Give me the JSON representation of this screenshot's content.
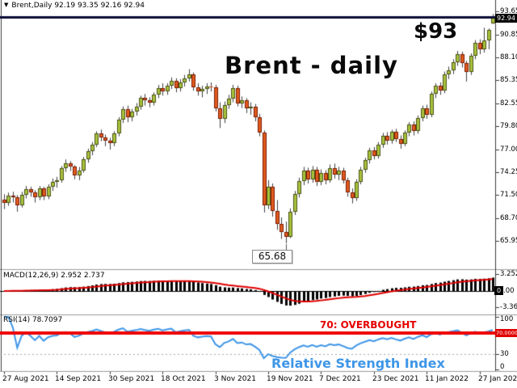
{
  "window": {
    "dropdown_icon": "▼",
    "symbol_header": "Brent,Daily  92.19 93.35 92.16 92.94"
  },
  "annotations": {
    "price_target": "$93",
    "chart_title": "Brent - daily",
    "low_label": "65.68",
    "overbought_label": "70: OVERBOUGHT",
    "rsi_caption": "Relative Strength Index"
  },
  "main_axis": {
    "labels": [
      "93.65",
      "90.85",
      "88.10",
      "85.35",
      "82.55",
      "79.80",
      "77.00",
      "74.25",
      "71.50",
      "68.70",
      "65.95"
    ],
    "current_price_tag": "92.94"
  },
  "macd_panel": {
    "label": "MACD(12,26,9) 2.952 2.737",
    "axis_labels": [
      "3.252",
      "-3.361"
    ],
    "zero_tag": "0",
    "zero_axis_label": ".00"
  },
  "rsi_panel": {
    "label": "RSI(14) 78.7097",
    "axis_labels": [
      "100",
      "30",
      "0"
    ],
    "level_tag": "70.0000"
  },
  "x_axis": {
    "dates": [
      "27 Aug 2021",
      "14 Sep 2021",
      "30 Sep 2021",
      "18 Oct 2021",
      "3 Nov 2021",
      "19 Nov 2021",
      "7 Dec 2021",
      "23 Dec 2021",
      "11 Jan 2022",
      "27 Jan 2022"
    ]
  },
  "colors": {
    "bull_fill": "#a6c23c",
    "bull_border": "#4e5216",
    "bear_fill": "#e05a1e",
    "bear_border": "#7c1d02",
    "wick": "#3f3f3f",
    "bid_line": "#0b0b38",
    "macd_histogram": "#000000",
    "macd_signal": "#e10000",
    "rsi_line": "#3e96e8",
    "overbought_line": "#ee0404",
    "dotted_level": "#a8a8a8",
    "axis_border": "#3b3b3b",
    "separator": "#9b9b9b"
  },
  "chart_data": {
    "type": "candlestick",
    "symbol": "Brent",
    "timeframe": "Daily",
    "current_bar": {
      "open": 92.19,
      "high": 93.35,
      "low": 92.16,
      "close": 92.94
    },
    "price_axis_ticks": [
      93.65,
      90.85,
      88.1,
      85.35,
      82.55,
      79.8,
      77.0,
      74.25,
      71.5,
      68.7,
      65.95
    ],
    "lowest_low": 65.68,
    "x_tick_dates": [
      "27 Aug 2021",
      "14 Sep 2021",
      "30 Sep 2021",
      "18 Oct 2021",
      "3 Nov 2021",
      "19 Nov 2021",
      "7 Dec 2021",
      "23 Dec 2021",
      "11 Jan 2022",
      "27 Jan 2022"
    ],
    "bars_per_x_tick": 12,
    "indicators": {
      "macd": {
        "fast": 12,
        "slow": 26,
        "signal": 9,
        "current_macd": 2.952,
        "current_signal": 2.737,
        "axis_max": 3.252,
        "axis_min": -3.361
      },
      "rsi": {
        "period": 14,
        "current": 78.7097,
        "overbought_level": 70,
        "dotted_level": 30,
        "axis": [
          100,
          30,
          0
        ]
      }
    },
    "candles": [
      [
        70.9,
        71.6,
        69.8,
        70.6
      ],
      [
        70.6,
        71.8,
        70.2,
        71.4
      ],
      [
        71.4,
        71.9,
        70.6,
        71.2
      ],
      [
        71.2,
        71.5,
        69.5,
        70.3
      ],
      [
        70.3,
        71.9,
        70.0,
        71.5
      ],
      [
        71.5,
        72.6,
        71.1,
        72.2
      ],
      [
        72.2,
        72.5,
        71.3,
        71.8
      ],
      [
        71.8,
        72.1,
        70.6,
        71.2
      ],
      [
        71.2,
        72.6,
        70.9,
        72.3
      ],
      [
        72.3,
        72.5,
        70.9,
        71.3
      ],
      [
        71.3,
        72.8,
        71.0,
        72.5
      ],
      [
        72.5,
        73.5,
        72.0,
        73.1
      ],
      [
        73.1,
        73.7,
        72.4,
        73.3
      ],
      [
        73.3,
        75.0,
        73.0,
        74.8
      ],
      [
        74.8,
        75.8,
        74.3,
        75.3
      ],
      [
        75.3,
        75.6,
        74.4,
        74.9
      ],
      [
        74.9,
        75.1,
        73.4,
        73.9
      ],
      [
        73.9,
        74.9,
        73.3,
        74.5
      ],
      [
        74.5,
        76.1,
        74.2,
        75.8
      ],
      [
        75.8,
        77.1,
        75.4,
        76.8
      ],
      [
        76.8,
        77.9,
        76.3,
        77.6
      ],
      [
        77.6,
        79.2,
        77.3,
        78.9
      ],
      [
        78.9,
        79.4,
        78.0,
        78.5
      ],
      [
        78.5,
        78.8,
        77.4,
        78.1
      ],
      [
        78.1,
        78.4,
        77.0,
        77.8
      ],
      [
        77.8,
        79.2,
        77.4,
        78.9
      ],
      [
        78.9,
        80.9,
        78.6,
        80.6
      ],
      [
        80.6,
        82.2,
        80.2,
        81.9
      ],
      [
        81.9,
        82.3,
        80.3,
        80.9
      ],
      [
        80.9,
        81.9,
        80.4,
        81.6
      ],
      [
        81.6,
        82.6,
        81.1,
        82.2
      ],
      [
        82.2,
        83.5,
        81.8,
        83.2
      ],
      [
        83.2,
        83.7,
        82.3,
        82.9
      ],
      [
        82.9,
        83.3,
        82.1,
        82.7
      ],
      [
        82.7,
        83.9,
        82.3,
        83.6
      ],
      [
        83.6,
        84.8,
        83.2,
        84.4
      ],
      [
        84.4,
        85.0,
        83.5,
        84.0
      ],
      [
        84.0,
        85.0,
        83.6,
        84.7
      ],
      [
        84.7,
        85.7,
        84.3,
        85.3
      ],
      [
        85.3,
        85.6,
        83.9,
        84.4
      ],
      [
        84.4,
        85.5,
        84.0,
        85.1
      ],
      [
        85.1,
        86.0,
        84.6,
        85.6
      ],
      [
        85.6,
        86.7,
        85.2,
        86.1
      ],
      [
        86.1,
        86.3,
        84.1,
        84.5
      ],
      [
        84.5,
        85.0,
        83.5,
        84.0
      ],
      [
        84.0,
        84.7,
        83.3,
        84.3
      ],
      [
        84.3,
        85.0,
        83.7,
        84.6
      ],
      [
        84.6,
        85.1,
        84.0,
        84.5
      ],
      [
        84.5,
        84.8,
        81.6,
        82.0
      ],
      [
        82.0,
        82.7,
        79.6,
        80.7
      ],
      [
        80.7,
        82.8,
        80.2,
        82.4
      ],
      [
        82.4,
        83.6,
        81.9,
        83.1
      ],
      [
        83.1,
        84.8,
        82.7,
        84.4
      ],
      [
        84.4,
        84.7,
        82.2,
        82.6
      ],
      [
        82.6,
        83.4,
        82.0,
        82.9
      ],
      [
        82.9,
        83.2,
        81.4,
        82.0
      ],
      [
        82.0,
        82.7,
        81.2,
        82.2
      ],
      [
        82.2,
        82.5,
        80.4,
        80.9
      ],
      [
        80.9,
        81.3,
        78.6,
        79.0
      ],
      [
        79.0,
        79.3,
        69.4,
        70.3
      ],
      [
        70.3,
        73.3,
        69.8,
        72.5
      ],
      [
        72.5,
        72.9,
        68.9,
        69.6
      ],
      [
        69.6,
        70.9,
        67.3,
        68.0
      ],
      [
        68.0,
        68.8,
        66.2,
        67.0
      ],
      [
        67.0,
        68.3,
        65.68,
        66.5
      ],
      [
        66.5,
        69.9,
        66.3,
        69.5
      ],
      [
        69.5,
        72.0,
        69.1,
        71.6
      ],
      [
        71.6,
        73.6,
        71.2,
        73.2
      ],
      [
        73.2,
        74.9,
        72.7,
        74.5
      ],
      [
        74.5,
        74.8,
        72.9,
        73.4
      ],
      [
        73.4,
        75.0,
        73.0,
        74.6
      ],
      [
        74.6,
        74.9,
        72.6,
        73.1
      ],
      [
        73.1,
        74.6,
        72.7,
        74.2
      ],
      [
        74.2,
        74.5,
        72.8,
        73.3
      ],
      [
        73.3,
        75.2,
        73.0,
        74.8
      ],
      [
        74.8,
        75.3,
        73.5,
        74.0
      ],
      [
        74.0,
        74.9,
        73.3,
        74.5
      ],
      [
        74.5,
        74.8,
        72.9,
        73.3
      ],
      [
        73.3,
        73.6,
        71.3,
        71.8
      ],
      [
        71.8,
        72.3,
        70.5,
        71.1
      ],
      [
        71.1,
        73.4,
        70.8,
        73.1
      ],
      [
        73.1,
        74.9,
        72.8,
        74.6
      ],
      [
        74.6,
        76.0,
        74.2,
        75.7
      ],
      [
        75.7,
        77.2,
        75.3,
        76.9
      ],
      [
        76.9,
        77.3,
        75.8,
        76.2
      ],
      [
        76.2,
        77.9,
        75.9,
        77.6
      ],
      [
        77.6,
        79.0,
        77.2,
        78.7
      ],
      [
        78.7,
        79.1,
        77.6,
        78.1
      ],
      [
        78.1,
        79.4,
        77.7,
        79.1
      ],
      [
        79.1,
        79.5,
        77.9,
        78.3
      ],
      [
        78.3,
        78.7,
        77.1,
        77.7
      ],
      [
        77.7,
        79.3,
        77.4,
        79.0
      ],
      [
        79.0,
        80.3,
        78.6,
        80.0
      ],
      [
        80.0,
        80.4,
        78.7,
        79.2
      ],
      [
        79.2,
        81.1,
        78.9,
        80.8
      ],
      [
        80.8,
        82.3,
        80.4,
        82.0
      ],
      [
        82.0,
        82.4,
        80.7,
        81.2
      ],
      [
        81.2,
        84.0,
        80.9,
        83.7
      ],
      [
        83.7,
        85.0,
        83.2,
        84.7
      ],
      [
        84.7,
        85.1,
        83.6,
        84.1
      ],
      [
        84.1,
        86.4,
        83.8,
        86.1
      ],
      [
        86.1,
        87.0,
        85.5,
        86.6
      ],
      [
        86.6,
        87.9,
        86.1,
        87.5
      ],
      [
        87.5,
        88.9,
        87.1,
        88.5
      ],
      [
        88.5,
        88.8,
        86.9,
        87.4
      ],
      [
        87.4,
        87.7,
        85.2,
        86.4
      ],
      [
        86.4,
        88.6,
        86.0,
        88.3
      ],
      [
        88.3,
        90.2,
        87.9,
        89.9
      ],
      [
        89.9,
        90.3,
        88.5,
        89.1
      ],
      [
        89.1,
        91.7,
        88.7,
        90.2
      ],
      [
        90.2,
        91.6,
        89.1,
        91.4
      ],
      [
        92.19,
        93.35,
        92.16,
        92.94
      ]
    ]
  }
}
